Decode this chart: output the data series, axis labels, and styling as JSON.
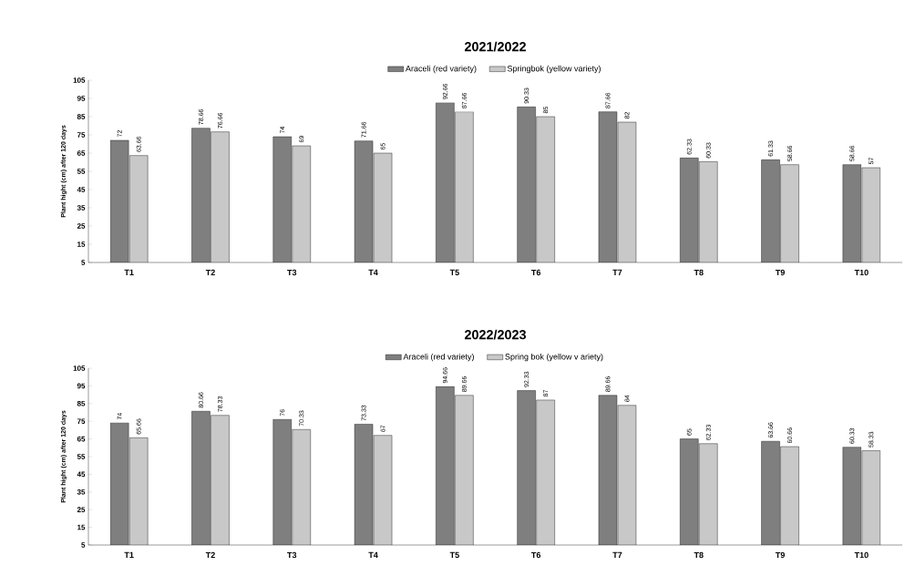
{
  "chart_data": [
    {
      "type": "bar",
      "title": "2021/2022",
      "ylabel": "Plant hight (cm) after 120 days",
      "categories": [
        "T1",
        "T2",
        "T3",
        "T4",
        "T5",
        "T6",
        "T7",
        "T8",
        "T9",
        "T10"
      ],
      "series": [
        {
          "name": "Araceli (red variety)",
          "color": "#7f7f7f",
          "values": [
            72,
            78.66,
            74,
            71.66,
            92.66,
            90.33,
            87.66,
            62.33,
            61.33,
            58.66
          ]
        },
        {
          "name": "Springbok (yellow variety)",
          "color": "#c8c8c8",
          "values": [
            63.66,
            76.66,
            69,
            65,
            87.66,
            85,
            82,
            60.33,
            58.66,
            57
          ]
        }
      ],
      "ylim": [
        5,
        105
      ],
      "yticks": [
        5,
        15,
        25,
        35,
        45,
        55,
        65,
        75,
        85,
        95,
        105
      ],
      "data_labels": true,
      "legend": "top",
      "grid": false
    },
    {
      "type": "bar",
      "title": "2022/2023",
      "ylabel": "Plant hight (cm) after 120 days",
      "categories": [
        "T1",
        "T2",
        "T3",
        "T4",
        "T5",
        "T6",
        "T7",
        "T8",
        "T9",
        "T10"
      ],
      "series": [
        {
          "name": "Araceli (red variety)",
          "color": "#7f7f7f",
          "values": [
            74,
            80.66,
            76,
            73.33,
            94.66,
            92.33,
            89.66,
            65,
            63.66,
            60.33
          ]
        },
        {
          "name": "Spring bok (yellow v ariety)",
          "color": "#c8c8c8",
          "values": [
            65.66,
            78.33,
            70.33,
            67,
            89.66,
            87,
            84,
            62.33,
            60.66,
            58.33
          ]
        }
      ],
      "ylim": [
        5,
        105
      ],
      "yticks": [
        5,
        15,
        25,
        35,
        45,
        55,
        65,
        75,
        85,
        95,
        105
      ],
      "data_labels": true,
      "legend": "top",
      "grid": false
    }
  ]
}
